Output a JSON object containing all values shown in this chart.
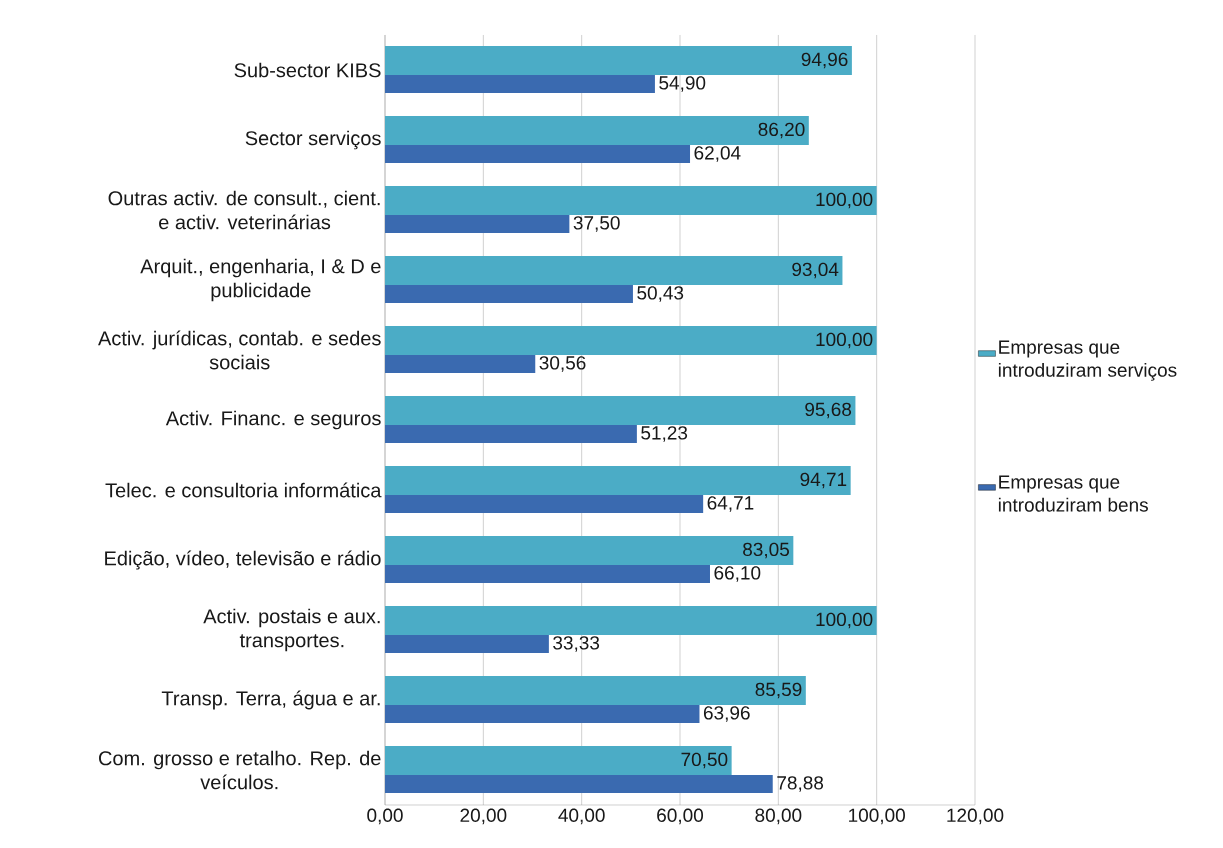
{
  "chart_data": {
    "type": "bar",
    "orientation": "horizontal",
    "categories": [
      "Sub-sector KIBS",
      "Sector serviços",
      "Outras activ. de consult., cient. e activ. veterinárias",
      "Arquit., engenharia, I & D e publicidade",
      "Activ. jurídicas, contab. e sedes sociais",
      "Activ. Financ. e seguros",
      "Telec. e consultoria informática",
      "Edição, vídeo, televisão e rádio",
      "Activ. postais e aux. transportes.",
      "Transp. Terra, água e ar.",
      "Com. grosso e retalho. Rep. de veículos."
    ],
    "series": [
      {
        "name": "Empresas que introduziram serviços",
        "color": "#4BACC6",
        "values": [
          94.96,
          86.2,
          100.0,
          93.04,
          100.0,
          95.68,
          94.71,
          83.05,
          100.0,
          85.59,
          70.5
        ],
        "value_labels": [
          "94,96",
          "86,20",
          "100,00",
          "93,04",
          "100,00",
          "95,68",
          "94,71",
          "83,05",
          "100,00",
          "85,59",
          "70,50"
        ]
      },
      {
        "name": "Empresas que introduziram bens",
        "color": "#3A6AB0",
        "values": [
          54.9,
          62.04,
          37.5,
          50.43,
          30.56,
          51.23,
          64.71,
          66.1,
          33.33,
          63.96,
          78.88
        ],
        "value_labels": [
          "54,90",
          "62,04",
          "37,50",
          "50,43",
          "30,56",
          "51,23",
          "64,71",
          "66,10",
          "33,33",
          "63,96",
          "78,88"
        ]
      }
    ],
    "xlim": [
      0,
      120
    ],
    "xticks": [
      {
        "value": 0,
        "label": "0,00"
      },
      {
        "value": 20,
        "label": "20,00"
      },
      {
        "value": 40,
        "label": "40,00"
      },
      {
        "value": 60,
        "label": "60,00"
      },
      {
        "value": 80,
        "label": "80,00"
      },
      {
        "value": 100,
        "label": "100,00"
      },
      {
        "value": 120,
        "label": "120,00"
      }
    ],
    "grid": "x",
    "legend": "right"
  }
}
